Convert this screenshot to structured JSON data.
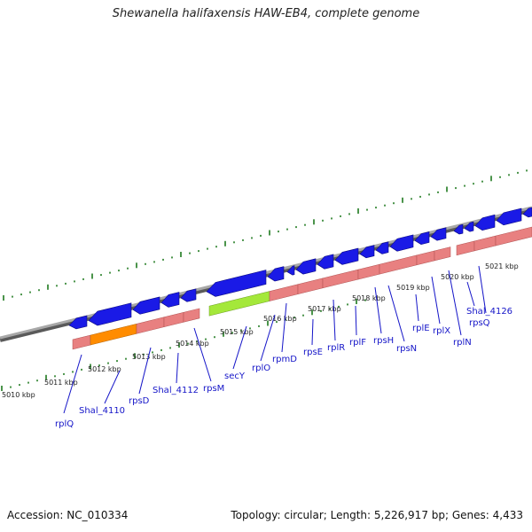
{
  "title": "Shewanella halifaxensis HAW-EB4, complete genome",
  "footer": {
    "accession": "Accession: NC_010334",
    "topology": "Topology: circular; Length: 5,226,917 bp; Genes: 4,433"
  },
  "colors": {
    "backbone": "#8c8c8c",
    "cds_arrow": "#1a1ae6",
    "rrna_band": "#e88080",
    "highlight_orange": "#ff8c00",
    "highlight_green": "#a4e83a",
    "tick_green": "#1e7a1e",
    "label_blue": "#1515c8"
  },
  "scale_labels": [
    "5010 kbp",
    "5011 kbp",
    "5012 kbp",
    "5013 kbp",
    "5014 kbp",
    "5015 kbp",
    "5016 kbp",
    "5017 kbp",
    "5018 kbp",
    "5019 kbp",
    "5020 kbp",
    "5021 kbp"
  ],
  "genes": [
    "rplQ",
    "Shal_4110",
    "rpsD",
    "Shal_4112",
    "rpsM",
    "secY",
    "rplO",
    "rpmD",
    "rpsE",
    "rplR",
    "rplF",
    "rpsH",
    "rpsN",
    "rplE",
    "rplX",
    "rplN",
    "Shal_4126",
    "rpsQ"
  ]
}
